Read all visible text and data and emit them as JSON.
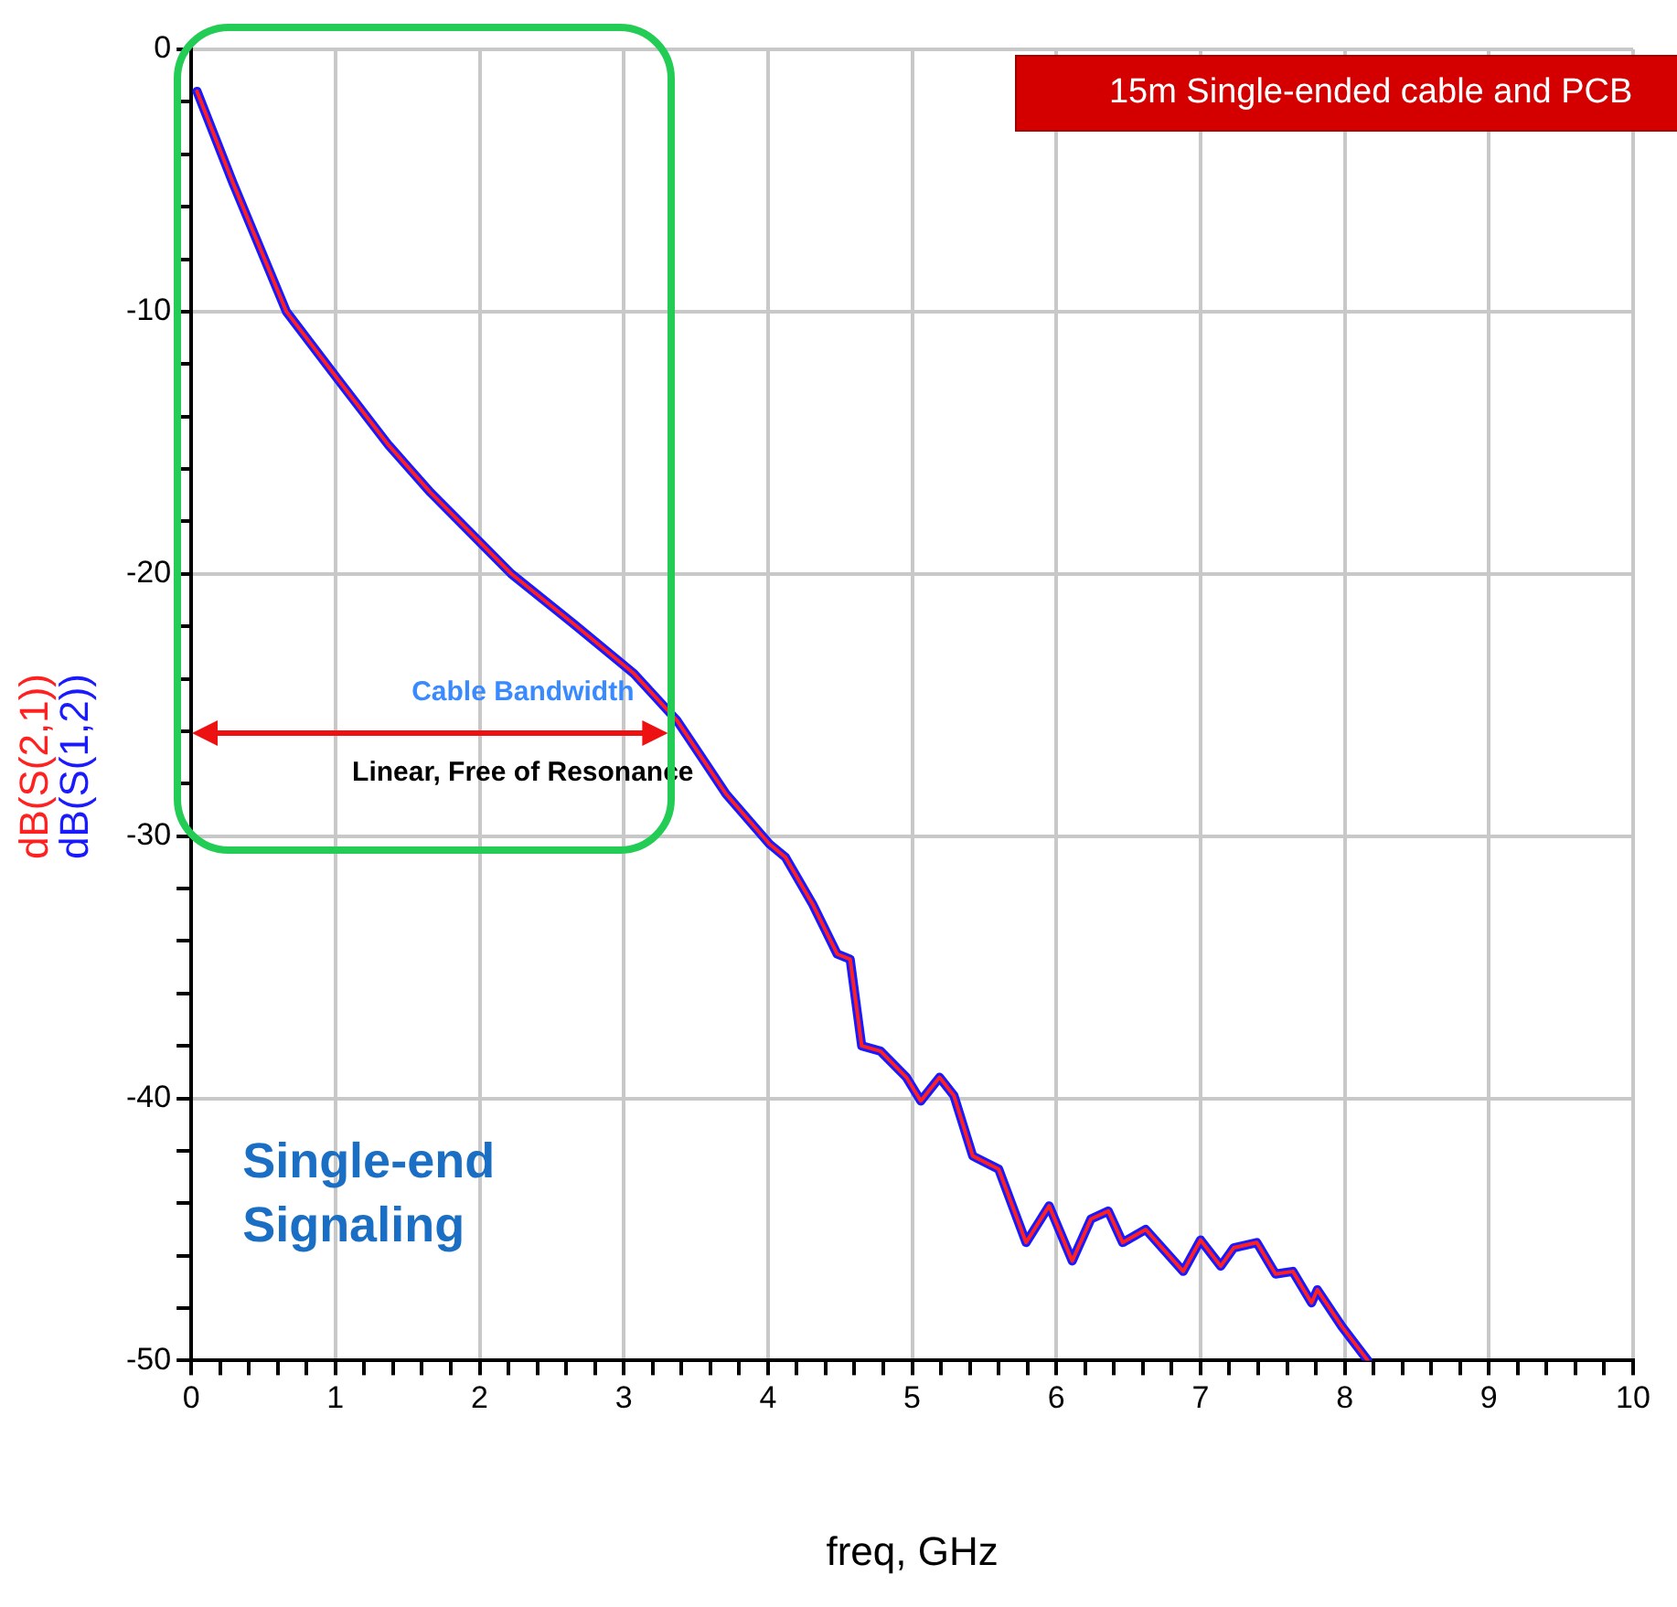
{
  "chart_data": {
    "type": "line",
    "xlabel": "freq, GHz",
    "x": [
      0.04,
      0.29,
      0.66,
      1.02,
      1.37,
      1.66,
      2.22,
      2.65,
      3.07,
      3.37,
      3.71,
      4.01,
      4.12,
      4.31,
      4.48,
      4.57,
      4.65,
      4.78,
      4.96,
      5.06,
      5.19,
      5.29,
      5.42,
      5.6,
      5.79,
      5.95,
      6.11,
      6.24,
      6.36,
      6.46,
      6.62,
      6.88,
      7.0,
      7.14,
      7.23,
      7.39,
      7.52,
      7.64,
      7.77,
      7.81,
      7.98,
      8.16
    ],
    "series": [
      {
        "name": "dB(S(1,2))",
        "color": "#1a1aff",
        "values": [
          -1.6,
          -5.1,
          -10,
          -12.6,
          -15.1,
          -16.9,
          -20,
          -21.9,
          -23.8,
          -25.6,
          -28.4,
          -30.3,
          -30.8,
          -32.6,
          -34.5,
          -34.7,
          -38,
          -38.2,
          -39.2,
          -40.1,
          -39.2,
          -39.9,
          -42.2,
          -42.7,
          -45.5,
          -44.1,
          -46.2,
          -44.6,
          -44.3,
          -45.5,
          -45,
          -46.6,
          -45.4,
          -46.4,
          -45.7,
          -45.5,
          -46.7,
          -46.6,
          -47.8,
          -47.3,
          -48.7,
          -50
        ]
      },
      {
        "name": "dB(S(2,1))",
        "color": "#ff2020",
        "values": [
          -1.6,
          -5.1,
          -10,
          -12.6,
          -15.1,
          -16.9,
          -20,
          -21.9,
          -23.8,
          -25.6,
          -28.4,
          -30.3,
          -30.8,
          -32.6,
          -34.5,
          -34.7,
          -38,
          -38.2,
          -39.2,
          -40.1,
          -39.2,
          -39.9,
          -42.2,
          -42.7,
          -45.5,
          -44.1,
          -46.2,
          -44.6,
          -44.3,
          -45.5,
          -45,
          -46.6,
          -45.4,
          -46.4,
          -45.7,
          -45.5,
          -46.7,
          -46.6,
          -47.8,
          -47.3,
          -48.7,
          -50
        ]
      }
    ],
    "xlim": [
      0,
      10
    ],
    "xticks": [
      0,
      {
        "value": 0.2,
        "label": null
      },
      {
        "value": 0.4,
        "label": null
      },
      {
        "value": 0.6,
        "label": null
      },
      {
        "value": 0.8,
        "label": null
      },
      1,
      {
        "value": 1.2,
        "label": null
      },
      {
        "value": 1.4,
        "label": null
      },
      {
        "value": 1.6,
        "label": null
      },
      {
        "value": 1.8,
        "label": null
      },
      2,
      {
        "value": 2.2,
        "label": null
      },
      {
        "value": 2.4,
        "label": null
      },
      {
        "value": 2.6,
        "label": null
      },
      {
        "value": 2.8,
        "label": null
      },
      3,
      {
        "value": 3.2,
        "label": null
      },
      {
        "value": 3.4,
        "label": null
      },
      {
        "value": 3.6,
        "label": null
      },
      {
        "value": 3.8,
        "label": null
      },
      4,
      {
        "value": 4.2,
        "label": null
      },
      {
        "value": 4.4,
        "label": null
      },
      {
        "value": 4.6,
        "label": null
      },
      {
        "value": 4.8,
        "label": null
      },
      5,
      {
        "value": 5.2,
        "label": null
      },
      {
        "value": 5.4,
        "label": null
      },
      {
        "value": 5.6,
        "label": null
      },
      {
        "value": 5.8,
        "label": null
      },
      6,
      {
        "value": 6.2,
        "label": null
      },
      {
        "value": 6.4,
        "label": null
      },
      {
        "value": 6.6,
        "label": null
      },
      {
        "value": 6.8,
        "label": null
      },
      7,
      {
        "value": 7.2,
        "label": null
      },
      {
        "value": 7.4,
        "label": null
      },
      {
        "value": 7.6,
        "label": null
      },
      {
        "value": 7.8,
        "label": null
      },
      8,
      {
        "value": 8.2,
        "label": null
      },
      {
        "value": 8.4,
        "label": null
      },
      {
        "value": 8.6,
        "label": null
      },
      {
        "value": 8.8,
        "label": null
      },
      9,
      {
        "value": 9.2,
        "label": null
      },
      {
        "value": 9.4,
        "label": null
      },
      {
        "value": 9.6,
        "label": null
      },
      {
        "value": 9.8,
        "label": null
      },
      10
    ],
    "ylim": [
      -50,
      0
    ],
    "yticks": [
      -50,
      {
        "value": -48,
        "label": null
      },
      {
        "value": -46,
        "label": null
      },
      {
        "value": -44,
        "label": null
      },
      {
        "value": -42,
        "label": null
      },
      -40,
      {
        "value": -38,
        "label": null
      },
      {
        "value": -36,
        "label": null
      },
      {
        "value": -34,
        "label": null
      },
      {
        "value": -32,
        "label": null
      },
      -30,
      {
        "value": -28,
        "label": null
      },
      {
        "value": -26,
        "label": null
      },
      {
        "value": -24,
        "label": null
      },
      {
        "value": -22,
        "label": null
      },
      -20,
      {
        "value": -18,
        "label": null
      },
      {
        "value": -16,
        "label": null
      },
      {
        "value": -14,
        "label": null
      },
      {
        "value": -12,
        "label": null
      },
      -10,
      {
        "value": -8,
        "label": null
      },
      {
        "value": -6,
        "label": null
      },
      {
        "value": -4,
        "label": null
      },
      {
        "value": -2,
        "label": null
      },
      0
    ],
    "grid": true,
    "legend": false,
    "marker": "none",
    "line_style": "solid",
    "annotations": [
      "15m Single-ended cable and PCB",
      "Cable Bandwidth",
      "Linear, Free of Resonance",
      "Single-end Signaling"
    ]
  }
}
